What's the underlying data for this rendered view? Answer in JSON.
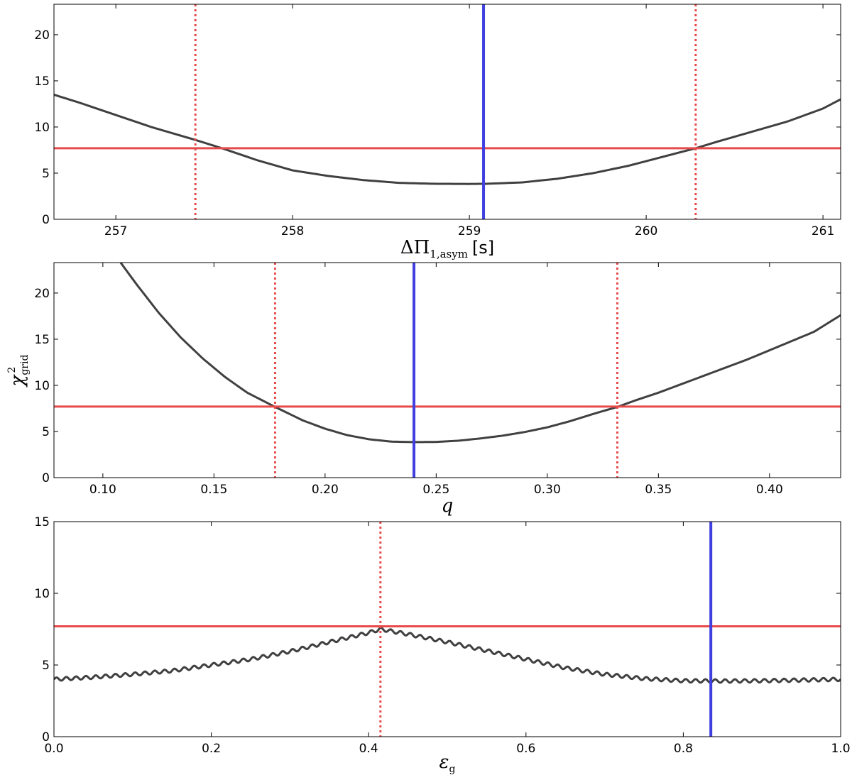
{
  "chart_data": [
    {
      "type": "line",
      "xlabel": "ΔΠ",
      "xlabel_sub": "1,asym",
      "xlabel_unit": "[s]",
      "ylabel": "",
      "xlim": [
        256.65,
        261.1
      ],
      "ylim": [
        0,
        23.3
      ],
      "xticks": [
        "257",
        "258",
        "259",
        "260",
        "261"
      ],
      "xtick_values": [
        257,
        258,
        259,
        260,
        261
      ],
      "yticks": [
        "0",
        "5",
        "10",
        "15",
        "20"
      ],
      "ytick_values": [
        0,
        5,
        10,
        15,
        20
      ],
      "grid": false,
      "series": [
        {
          "color": "#404040",
          "x": [
            256.65,
            256.8,
            257.0,
            257.2,
            257.45,
            257.6,
            257.8,
            258.0,
            258.2,
            258.4,
            258.6,
            258.8,
            259.0,
            259.1,
            259.3,
            259.5,
            259.7,
            259.9,
            260.1,
            260.28,
            260.4,
            260.6,
            260.8,
            261.0,
            261.1
          ],
          "y": [
            13.5,
            12.6,
            11.3,
            10.0,
            8.6,
            7.7,
            6.4,
            5.3,
            4.7,
            4.25,
            3.95,
            3.85,
            3.83,
            3.85,
            4.0,
            4.4,
            5.0,
            5.8,
            6.8,
            7.7,
            8.4,
            9.5,
            10.6,
            12.0,
            13.0
          ]
        }
      ],
      "hlines": [
        {
          "y": 7.7,
          "color": "#e84a4a",
          "style": "solid"
        }
      ],
      "vlines": [
        {
          "x": 257.45,
          "color": "#e84a4a",
          "style": "dotted"
        },
        {
          "x": 260.28,
          "color": "#e84a4a",
          "style": "dotted"
        },
        {
          "x": 259.08,
          "color": "#4040e0",
          "style": "solid"
        }
      ]
    },
    {
      "type": "line",
      "xlabel": "q",
      "xlabel_sub": "",
      "xlabel_unit": "",
      "ylabel": "χ",
      "ylabel_sup": "2",
      "ylabel_sub": "grid",
      "xlim": [
        0.078,
        0.432
      ],
      "ylim": [
        0,
        23.3
      ],
      "xticks": [
        "0.10",
        "0.15",
        "0.20",
        "0.25",
        "0.30",
        "0.35",
        "0.40"
      ],
      "xtick_values": [
        0.1,
        0.15,
        0.2,
        0.25,
        0.3,
        0.35,
        0.4
      ],
      "yticks": [
        "0",
        "5",
        "10",
        "15",
        "20"
      ],
      "ytick_values": [
        0,
        5,
        10,
        15,
        20
      ],
      "grid": false,
      "series": [
        {
          "color": "#404040",
          "x": [
            0.108,
            0.115,
            0.125,
            0.135,
            0.145,
            0.155,
            0.165,
            0.178,
            0.19,
            0.2,
            0.21,
            0.22,
            0.23,
            0.24,
            0.25,
            0.26,
            0.27,
            0.28,
            0.29,
            0.3,
            0.31,
            0.32,
            0.332,
            0.34,
            0.35,
            0.36,
            0.37,
            0.38,
            0.39,
            0.4,
            0.41,
            0.42,
            0.432
          ],
          "y": [
            23.3,
            21.0,
            17.9,
            15.2,
            12.9,
            10.9,
            9.2,
            7.6,
            6.2,
            5.3,
            4.6,
            4.15,
            3.9,
            3.85,
            3.87,
            4.0,
            4.25,
            4.55,
            4.95,
            5.45,
            6.1,
            6.85,
            7.7,
            8.4,
            9.2,
            10.1,
            11.0,
            11.9,
            12.8,
            13.8,
            14.8,
            15.8,
            17.6
          ]
        }
      ],
      "hlines": [
        {
          "y": 7.7,
          "color": "#e84a4a",
          "style": "solid"
        }
      ],
      "vlines": [
        {
          "x": 0.1775,
          "color": "#e84a4a",
          "style": "dotted"
        },
        {
          "x": 0.3315,
          "color": "#e84a4a",
          "style": "dotted"
        },
        {
          "x": 0.24,
          "color": "#4040e0",
          "style": "solid"
        }
      ]
    },
    {
      "type": "line",
      "xlabel": "ε",
      "xlabel_sub": "g",
      "xlabel_unit": "",
      "ylabel": "",
      "xlim": [
        0.0,
        1.0
      ],
      "ylim": [
        0,
        15
      ],
      "xticks": [
        "0.0",
        "0.2",
        "0.4",
        "0.6",
        "0.8",
        "1.0"
      ],
      "xtick_values": [
        0.0,
        0.2,
        0.4,
        0.6,
        0.8,
        1.0
      ],
      "yticks": [
        "0",
        "5",
        "10",
        "15"
      ],
      "ytick_values": [
        0,
        5,
        10,
        15
      ],
      "grid": false,
      "wiggle": {
        "amplitude": 0.12,
        "period": 0.0125
      },
      "series": [
        {
          "color": "#404040",
          "x": [
            0.0,
            0.05,
            0.1,
            0.15,
            0.2,
            0.25,
            0.3,
            0.35,
            0.4,
            0.415,
            0.45,
            0.5,
            0.55,
            0.6,
            0.65,
            0.7,
            0.75,
            0.8,
            0.85,
            0.9,
            0.95,
            1.0
          ],
          "y": [
            4.0,
            4.15,
            4.35,
            4.6,
            5.0,
            5.4,
            5.95,
            6.6,
            7.25,
            7.5,
            7.15,
            6.6,
            6.0,
            5.4,
            4.8,
            4.35,
            4.05,
            3.9,
            3.88,
            3.9,
            3.95,
            4.0
          ]
        }
      ],
      "hlines": [
        {
          "y": 7.7,
          "color": "#e84a4a",
          "style": "solid"
        }
      ],
      "vlines": [
        {
          "x": 0.415,
          "color": "#e84a4a",
          "style": "dotted"
        },
        {
          "x": 0.835,
          "color": "#4040e0",
          "style": "solid"
        }
      ]
    }
  ]
}
